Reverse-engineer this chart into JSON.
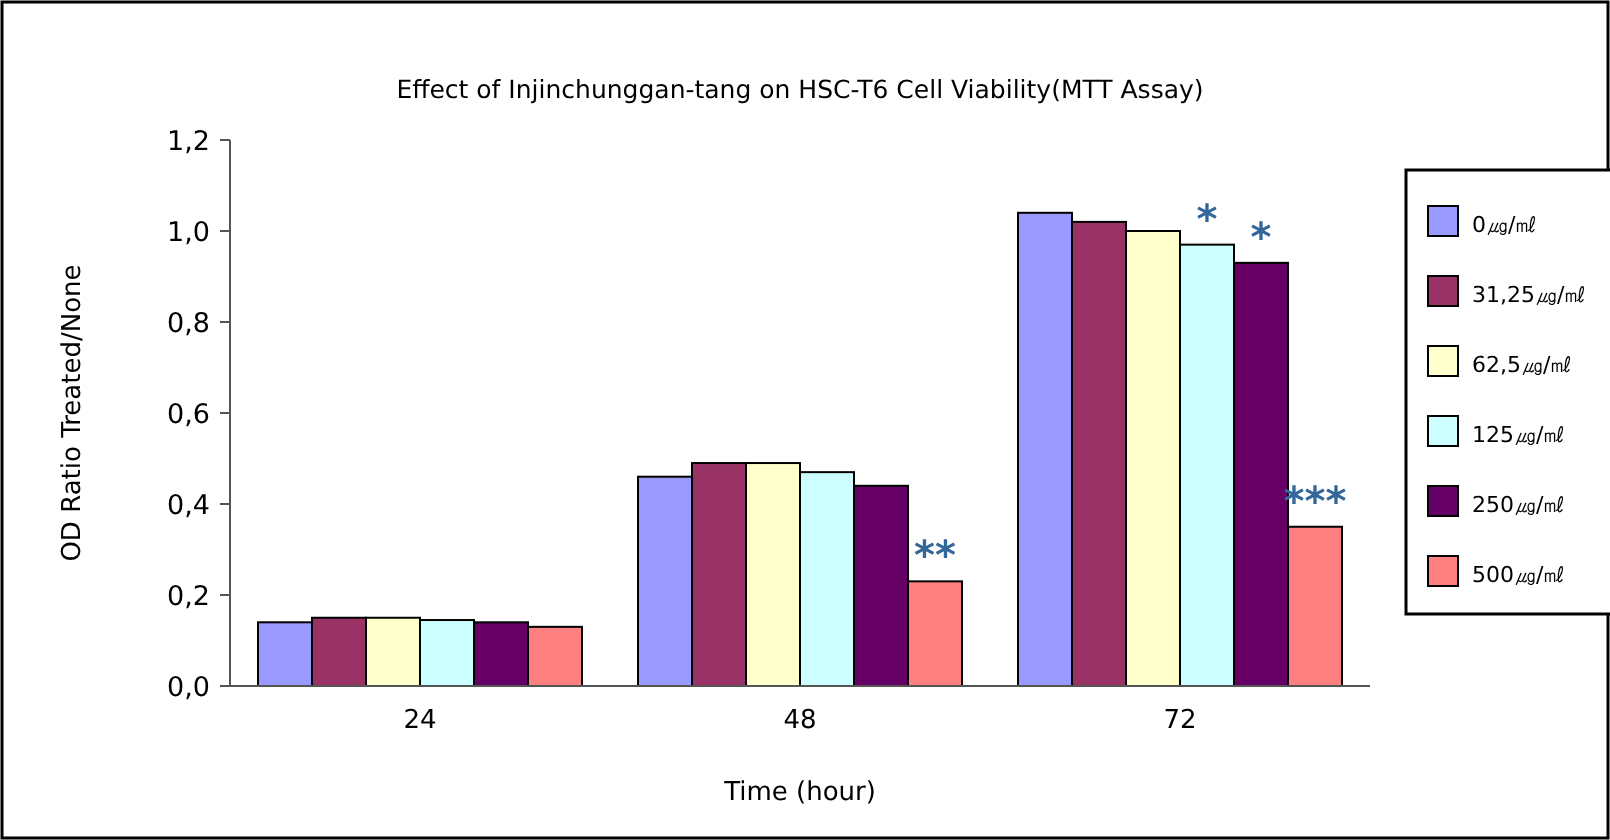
{
  "chart_data": {
    "type": "bar",
    "title": "Effect of Injinchunggan-tang on HSC-T6 Cell Viability(MTT Assay)",
    "xlabel": "Time (hour)",
    "ylabel": "OD Ratio Treated/None",
    "categories": [
      "24",
      "48",
      "72"
    ],
    "series": [
      {
        "name": "0㎍/㎖",
        "color": "#9999ff",
        "values": [
          0.14,
          0.46,
          1.04
        ]
      },
      {
        "name": "31,25㎍/㎖",
        "color": "#993366",
        "values": [
          0.15,
          0.49,
          1.02
        ]
      },
      {
        "name": "62,5㎍/㎖",
        "color": "#ffffcc",
        "values": [
          0.15,
          0.49,
          1.0
        ]
      },
      {
        "name": "125㎍/㎖",
        "color": "#ccffff",
        "values": [
          0.145,
          0.47,
          0.97
        ]
      },
      {
        "name": "250㎍/㎖",
        "color": "#660066",
        "values": [
          0.14,
          0.44,
          0.93
        ]
      },
      {
        "name": "500㎍/㎖",
        "color": "#ff8080",
        "values": [
          0.13,
          0.23,
          0.35
        ]
      }
    ],
    "annotations": [
      {
        "text": "**",
        "x": "48",
        "y": 0.23
      },
      {
        "text": "*",
        "x": "72",
        "y": 0.97
      },
      {
        "text": "*",
        "x": "72",
        "y": 0.93
      },
      {
        "text": "***",
        "x": "72",
        "y": 0.35
      }
    ],
    "ylim": [
      0,
      1.2
    ],
    "yticks": [
      {
        "value": 0,
        "label": "0,0"
      },
      {
        "value": 0.2,
        "label": "0,2"
      },
      {
        "value": 0.4,
        "label": "0,4"
      },
      {
        "value": 0.6,
        "label": "0,6"
      },
      {
        "value": 0.8,
        "label": "0,8"
      },
      {
        "value": 1.0,
        "label": "1,0"
      },
      {
        "value": 1.2,
        "label": "1,2"
      }
    ],
    "grid": false,
    "legend": "right"
  }
}
